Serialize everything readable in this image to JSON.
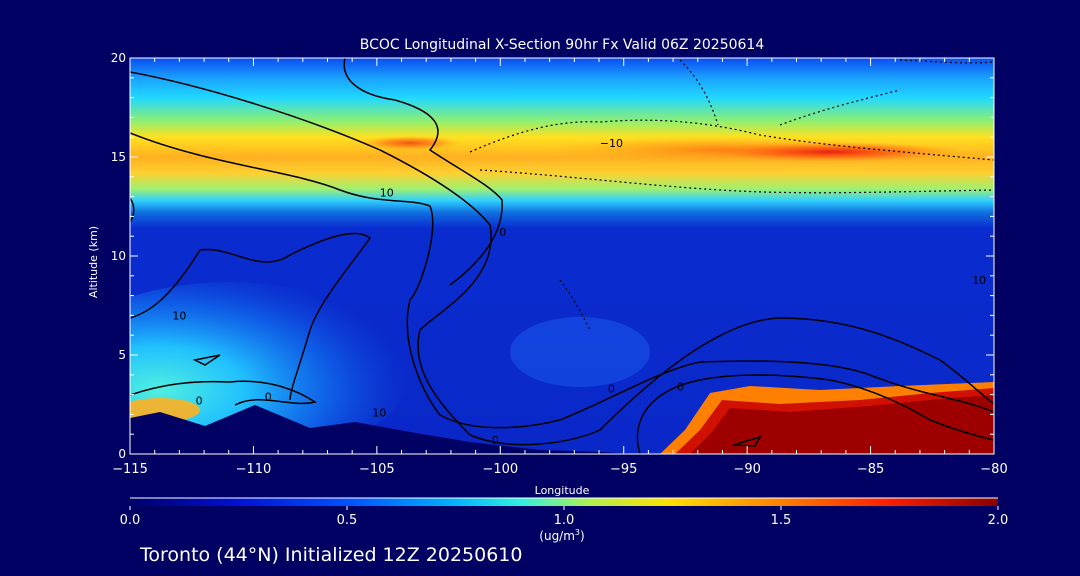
{
  "chart_data": {
    "type": "heatmap",
    "title": "BCOC Longitudinal X-Section 90hr  Fx Valid 06Z 20250614",
    "xlabel": "Longitude",
    "ylabel": "Altitude (km)",
    "xlim": [
      -115,
      -80
    ],
    "ylim": [
      0,
      20
    ],
    "x_ticks": [
      -115,
      -110,
      -105,
      -100,
      -95,
      -90,
      -85,
      -80
    ],
    "y_ticks": [
      0,
      5,
      10,
      15,
      20
    ],
    "colorbar": {
      "range": [
        0.0,
        2.0
      ],
      "ticks": [
        "0.0",
        "0.5",
        "1.0",
        "1.5",
        "2.0"
      ],
      "unit_main": "(ug/m",
      "unit_sup": "3",
      "unit_end": ")"
    },
    "contour_labels": [
      {
        "x": -112.2,
        "y": 2.7,
        "text": "0"
      },
      {
        "x": -104.6,
        "y": 13.2,
        "text": "10"
      },
      {
        "x": -113.0,
        "y": 7.0,
        "text": "10"
      },
      {
        "x": -109.4,
        "y": 2.9,
        "text": "0"
      },
      {
        "x": -104.9,
        "y": 2.1,
        "text": "10"
      },
      {
        "x": -100.2,
        "y": 0.7,
        "text": "0"
      },
      {
        "x": -99.9,
        "y": 11.2,
        "text": "0"
      },
      {
        "x": -95.5,
        "y": 3.3,
        "text": "0"
      },
      {
        "x": -92.7,
        "y": 3.4,
        "text": "0"
      },
      {
        "x": -95.5,
        "y": 15.7,
        "text": "-10"
      },
      {
        "x": -80.6,
        "y": 8.8,
        "text": "10"
      }
    ],
    "grid": false
  },
  "footer": "Toronto (44°N) Initialized 12Z 20250610",
  "colors": {
    "background": "#010163",
    "terrain": "#010163",
    "high_concentration": "#9e0000"
  }
}
